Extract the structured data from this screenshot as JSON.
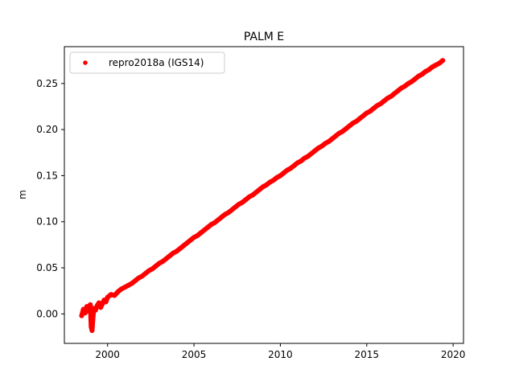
{
  "chart_data": {
    "type": "scatter",
    "title": "PALM E",
    "xlabel": "",
    "ylabel": "m",
    "xlim": [
      1997.5,
      2020.6
    ],
    "ylim": [
      -0.032,
      0.29
    ],
    "xticks": [
      2000,
      2005,
      2010,
      2015,
      2020
    ],
    "xtick_labels": [
      "2000",
      "2005",
      "2010",
      "2015",
      "2020"
    ],
    "yticks": [
      0.0,
      0.05,
      0.1,
      0.15,
      0.2,
      0.25
    ],
    "ytick_labels": [
      "0.00",
      "0.05",
      "0.10",
      "0.15",
      "0.20",
      "0.25"
    ],
    "grid": false,
    "legend_position": "top-left",
    "series": [
      {
        "name": "repro2018a (IGS14)",
        "color": "#ff0000",
        "marker": "circle",
        "x": [
          1998.5,
          1998.6,
          1998.7,
          1998.8,
          1998.9,
          1999.0,
          1999.05,
          1999.1,
          1999.2,
          1999.3,
          1999.4,
          1999.5,
          1999.6,
          1999.7,
          1999.8,
          1999.9,
          2000.0,
          2000.2,
          2000.4,
          2000.6,
          2000.8,
          2001.0,
          2001.2,
          2001.4,
          2001.6,
          2001.8,
          2002.0,
          2002.2,
          2002.4,
          2002.6,
          2002.8,
          2003.0,
          2003.2,
          2003.4,
          2003.6,
          2003.8,
          2004.0,
          2004.2,
          2004.4,
          2004.6,
          2004.8,
          2005.0,
          2005.2,
          2005.4,
          2005.6,
          2005.8,
          2006.0,
          2006.2,
          2006.4,
          2006.6,
          2006.8,
          2007.0,
          2007.2,
          2007.4,
          2007.6,
          2007.8,
          2008.0,
          2008.2,
          2008.4,
          2008.6,
          2008.8,
          2009.0,
          2009.2,
          2009.4,
          2009.6,
          2009.8,
          2010.0,
          2010.2,
          2010.4,
          2010.6,
          2010.8,
          2011.0,
          2011.2,
          2011.4,
          2011.6,
          2011.8,
          2012.0,
          2012.2,
          2012.4,
          2012.6,
          2012.8,
          2013.0,
          2013.2,
          2013.4,
          2013.6,
          2013.8,
          2014.0,
          2014.2,
          2014.4,
          2014.6,
          2014.8,
          2015.0,
          2015.2,
          2015.4,
          2015.6,
          2015.8,
          2016.0,
          2016.2,
          2016.4,
          2016.6,
          2016.8,
          2017.0,
          2017.2,
          2017.4,
          2017.6,
          2017.8,
          2018.0,
          2018.2,
          2018.4,
          2018.6,
          2018.8,
          2019.0,
          2019.2,
          2019.4
        ],
        "y": [
          -0.002,
          0.005,
          0.001,
          0.008,
          0.003,
          0.01,
          -0.014,
          -0.018,
          0.006,
          0.004,
          0.009,
          0.012,
          0.007,
          0.011,
          0.015,
          0.013,
          0.018,
          0.021,
          0.02,
          0.024,
          0.027,
          0.029,
          0.031,
          0.033,
          0.036,
          0.039,
          0.041,
          0.044,
          0.047,
          0.049,
          0.052,
          0.055,
          0.057,
          0.06,
          0.063,
          0.066,
          0.068,
          0.071,
          0.074,
          0.077,
          0.08,
          0.083,
          0.085,
          0.088,
          0.091,
          0.094,
          0.097,
          0.099,
          0.102,
          0.105,
          0.108,
          0.11,
          0.113,
          0.116,
          0.119,
          0.121,
          0.124,
          0.127,
          0.129,
          0.132,
          0.135,
          0.138,
          0.14,
          0.143,
          0.145,
          0.148,
          0.15,
          0.153,
          0.156,
          0.158,
          0.161,
          0.164,
          0.166,
          0.169,
          0.171,
          0.174,
          0.177,
          0.18,
          0.182,
          0.185,
          0.187,
          0.19,
          0.193,
          0.196,
          0.198,
          0.201,
          0.204,
          0.207,
          0.209,
          0.212,
          0.215,
          0.218,
          0.22,
          0.223,
          0.226,
          0.228,
          0.231,
          0.234,
          0.236,
          0.239,
          0.242,
          0.245,
          0.247,
          0.25,
          0.252,
          0.255,
          0.258,
          0.26,
          0.263,
          0.265,
          0.268,
          0.27,
          0.272,
          0.275
        ]
      }
    ]
  }
}
